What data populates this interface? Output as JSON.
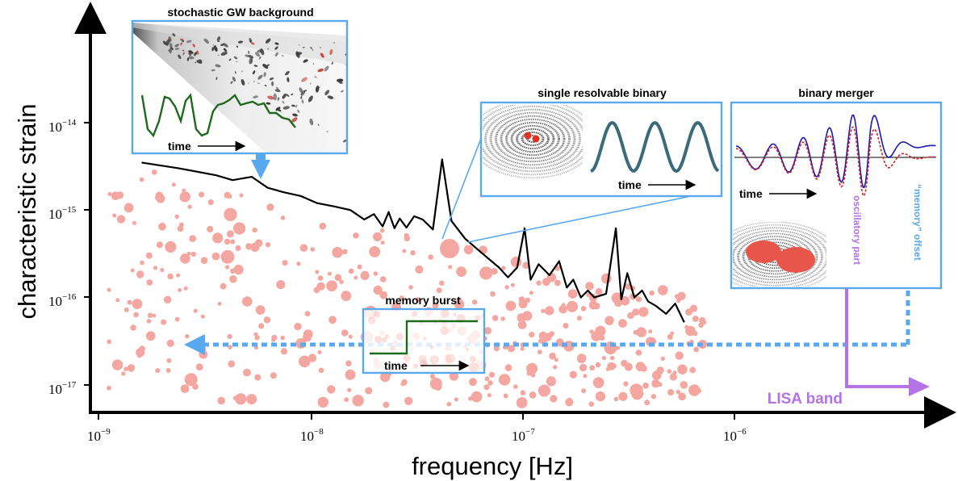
{
  "axes": {
    "xlabel": "frequency [Hz]",
    "ylabel": "characteristic strain",
    "x_scale": "log",
    "y_scale": "log",
    "x_ticks": [
      {
        "base": "10",
        "exp": "−9",
        "value": 1e-09
      },
      {
        "base": "10",
        "exp": "−8",
        "value": 1e-08
      },
      {
        "base": "10",
        "exp": "−7",
        "value": 1e-07
      },
      {
        "base": "10",
        "exp": "−6",
        "value": 1e-06
      }
    ],
    "y_ticks": [
      {
        "base": "10",
        "exp": "−14",
        "value": 1e-14
      },
      {
        "base": "10",
        "exp": "−15",
        "value": 1e-15
      },
      {
        "base": "10",
        "exp": "−16",
        "value": 1e-16
      },
      {
        "base": "10",
        "exp": "−17",
        "value": 1e-17
      }
    ]
  },
  "panels": {
    "background": {
      "title": "stochastic GW background",
      "time_label": "time"
    },
    "single": {
      "title": "single resolvable binary",
      "time_label": "time"
    },
    "merger": {
      "title": "binary merger",
      "time_label": "time"
    },
    "memory": {
      "title": "memory burst",
      "time_label": "time"
    }
  },
  "labels": {
    "oscillatory": "oscillatory part",
    "memory_offset": "“memory” offset",
    "lisa_band": "LISA band"
  },
  "colors": {
    "blue": "#59a9ef",
    "purple": "#b373e4",
    "pink": "#f4a7a0",
    "green": "#1d6a1d",
    "navy": "#1a1ab0",
    "red_dash": "#d62020"
  },
  "sensitivity_curve": {
    "description_units": "frequency Hz vs characteristic strain",
    "points": [
      [
        1.6e-09,
        3.5e-15
      ],
      [
        2.4e-09,
        3e-15
      ],
      [
        3.6e-09,
        2.5e-15
      ],
      [
        4.3e-09,
        2.2e-15
      ],
      [
        5.3e-09,
        2.4e-15
      ],
      [
        6.3e-09,
        1.8e-15
      ],
      [
        7.5e-09,
        1.6e-15
      ],
      [
        9e-09,
        1.45e-15
      ],
      [
        1.08e-08,
        1.2e-15
      ],
      [
        1.3e-08,
        1.1e-15
      ],
      [
        1.55e-08,
        1e-15
      ],
      [
        1.8e-08,
        7.8e-16
      ],
      [
        2e-08,
        9e-16
      ],
      [
        2.2e-08,
        6.5e-16
      ],
      [
        2.35e-08,
        9.5e-16
      ],
      [
        2.5e-08,
        6.2e-16
      ],
      [
        2.65e-08,
        8e-16
      ],
      [
        2.85e-08,
        6.3e-16
      ],
      [
        3.1e-08,
        8.5e-16
      ],
      [
        3.4e-08,
        7.8e-16
      ],
      [
        3.8e-08,
        6e-16
      ],
      [
        4.2e-08,
        3.8e-15
      ],
      [
        4.65e-08,
        7.5e-16
      ],
      [
        5.4e-08,
        4.7e-16
      ],
      [
        6.5e-08,
        3.2e-16
      ],
      [
        7.8e-08,
        2.2e-16
      ],
      [
        8.6e-08,
        1.7e-16
      ],
      [
        9.5e-08,
        2.2e-16
      ],
      [
        1.03e-07,
        6.2e-16
      ],
      [
        1.1e-07,
        1.6e-16
      ],
      [
        1.2e-07,
        2.4e-16
      ],
      [
        1.35e-07,
        1.8e-16
      ],
      [
        1.5e-07,
        2.6e-16
      ],
      [
        1.63e-07,
        1.3e-16
      ],
      [
        1.75e-07,
        1.6e-16
      ],
      [
        1.9e-07,
        1e-16
      ],
      [
        2.05e-07,
        1.2e-16
      ],
      [
        2.2e-07,
        1e-16
      ],
      [
        2.5e-07,
        1.1e-16
      ],
      [
        2.78e-07,
        6.2e-16
      ],
      [
        2.95e-07,
        9.5e-17
      ],
      [
        3.15e-07,
        1.9e-16
      ],
      [
        3.4e-07,
        1e-16
      ],
      [
        3.7e-07,
        1.2e-16
      ],
      [
        3.95e-07,
        9e-17
      ],
      [
        4.3e-07,
        8e-17
      ],
      [
        4.8e-07,
        6.5e-17
      ],
      [
        5.3e-07,
        8.5e-17
      ],
      [
        5.85e-07,
        5.2e-17
      ]
    ]
  }
}
